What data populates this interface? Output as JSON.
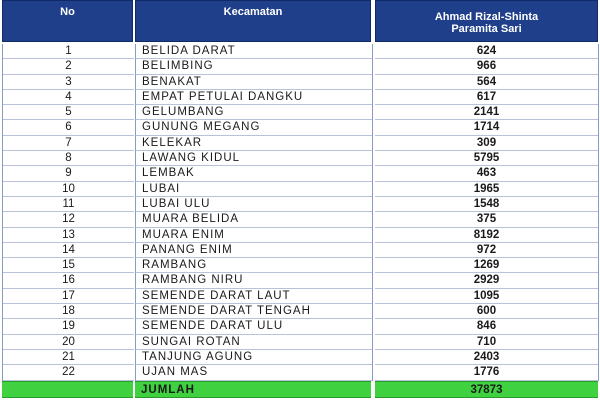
{
  "table": {
    "headers": {
      "no": "No",
      "kecamatan": "Kecamatan",
      "candidate_line1": "Ahmad Rizal-Shinta",
      "candidate_line2": "Paramita Sari"
    },
    "rows": [
      {
        "no": "1",
        "kecamatan": "BELIDA DARAT",
        "votes": "624"
      },
      {
        "no": "2",
        "kecamatan": "BELIMBING",
        "votes": "966"
      },
      {
        "no": "3",
        "kecamatan": "BENAKAT",
        "votes": "564"
      },
      {
        "no": "4",
        "kecamatan": "EMPAT PETULAI DANGKU",
        "votes": "617"
      },
      {
        "no": "5",
        "kecamatan": "GELUMBANG",
        "votes": "2141"
      },
      {
        "no": "6",
        "kecamatan": "GUNUNG MEGANG",
        "votes": "1714"
      },
      {
        "no": "7",
        "kecamatan": "KELEKAR",
        "votes": "309"
      },
      {
        "no": "8",
        "kecamatan": "LAWANG KIDUL",
        "votes": "5795"
      },
      {
        "no": "9",
        "kecamatan": "LEMBAK",
        "votes": "463"
      },
      {
        "no": "10",
        "kecamatan": "LUBAI",
        "votes": "1965"
      },
      {
        "no": "11",
        "kecamatan": "LUBAI ULU",
        "votes": "1548"
      },
      {
        "no": "12",
        "kecamatan": "MUARA BELIDA",
        "votes": "375"
      },
      {
        "no": "13",
        "kecamatan": "MUARA ENIM",
        "votes": "8192"
      },
      {
        "no": "14",
        "kecamatan": "PANANG ENIM",
        "votes": "972"
      },
      {
        "no": "15",
        "kecamatan": "RAMBANG",
        "votes": "1269"
      },
      {
        "no": "16",
        "kecamatan": "RAMBANG NIRU",
        "votes": "2929"
      },
      {
        "no": "17",
        "kecamatan": "SEMENDE DARAT LAUT",
        "votes": "1095"
      },
      {
        "no": "18",
        "kecamatan": "SEMENDE DARAT TENGAH",
        "votes": "600"
      },
      {
        "no": "19",
        "kecamatan": "SEMENDE DARAT ULU",
        "votes": "846"
      },
      {
        "no": "20",
        "kecamatan": "SUNGAI ROTAN",
        "votes": "710"
      },
      {
        "no": "21",
        "kecamatan": "TANJUNG AGUNG",
        "votes": "2403"
      },
      {
        "no": "22",
        "kecamatan": "UJAN MAS",
        "votes": "1776"
      }
    ],
    "total": {
      "label": "JUMLAH",
      "votes": "37873"
    }
  },
  "colors": {
    "header_bg": "#1f3f8a",
    "total_bg": "#3fd13f"
  }
}
